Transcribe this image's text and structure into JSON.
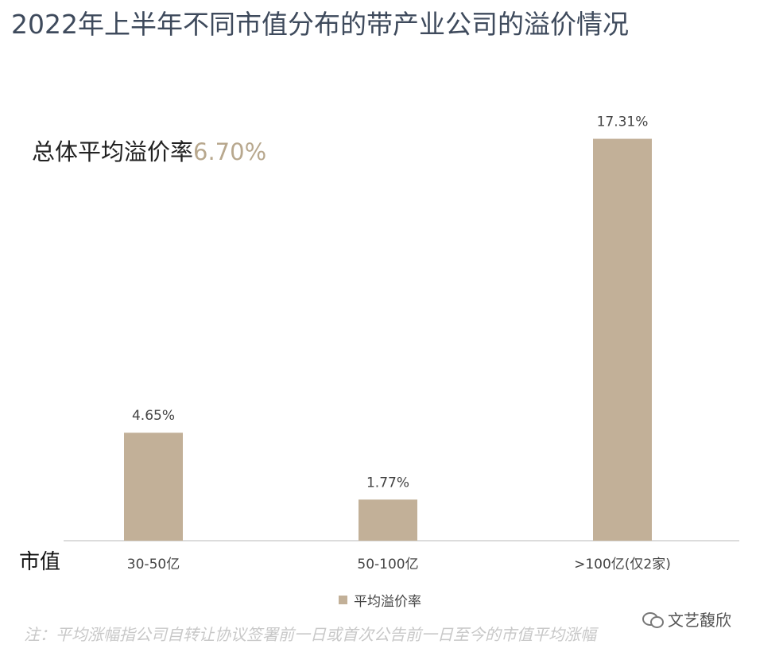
{
  "title": "2022年上半年不同市值分布的带产业公司的溢价情况",
  "overall": {
    "label": "总体平均溢价率",
    "value": "6.70%"
  },
  "axis_name": "市值",
  "note": "注：平均涨幅指公司自转让协议签署前一日或首次公告前一日至今的市值平均涨幅",
  "watermark": "文艺馥欣",
  "watermark_icon": "wechat-icon",
  "colors": {
    "bar": "#c2b098",
    "accent": "#b8a88e",
    "axis": "#d0d0d0"
  },
  "chart_data": {
    "type": "bar",
    "categories": [
      "30-50亿",
      "50-100亿",
      ">100亿(仅2家)"
    ],
    "series": [
      {
        "name": "平均溢价率",
        "values": [
          4.65,
          1.77,
          17.31
        ],
        "labels": [
          "4.65%",
          "1.77%",
          "17.31%"
        ]
      }
    ],
    "ylim": [
      0,
      20
    ],
    "grid": false,
    "legend": "bottom-center"
  }
}
